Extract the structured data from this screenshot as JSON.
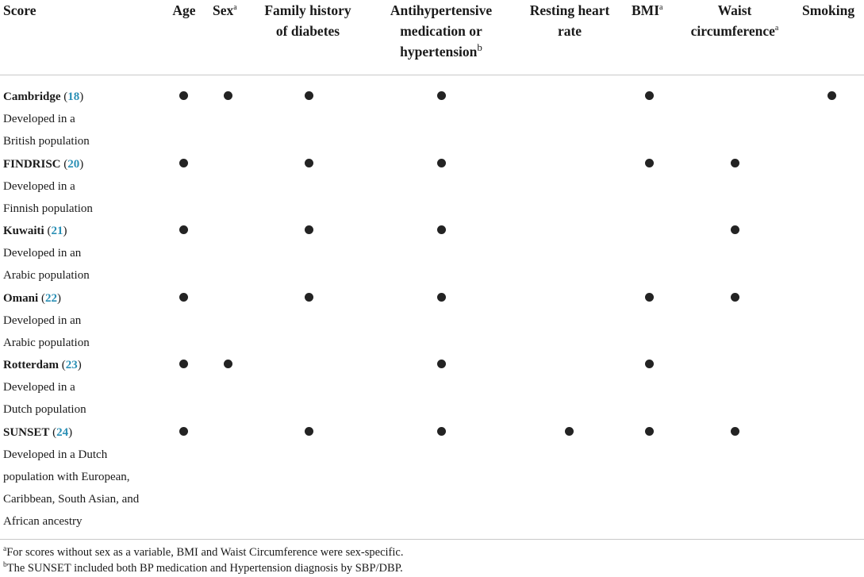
{
  "header": {
    "score": "Score",
    "age": "Age",
    "sex": "Sex",
    "sex_mark": "a",
    "family_line1": "Family history",
    "family_line2": "of diabetes",
    "antihyp_line1": "Antihypertensive",
    "antihyp_line2": "medication or",
    "antihyp_line3": "hypertension",
    "antihyp_mark": "b",
    "heart_line1": "Resting heart",
    "heart_line2": "rate",
    "bmi": "BMI",
    "bmi_mark": "a",
    "waist_line1": "Waist",
    "waist_line2": "circumference",
    "waist_mark": "a",
    "smoking": "Smoking"
  },
  "columns": [
    "age",
    "sex",
    "family",
    "antihyp",
    "heart",
    "bmi",
    "waist",
    "smoking"
  ],
  "rows": [
    {
      "name": "Cambridge",
      "ref": "18",
      "desc": [
        "Developed in a",
        "British population"
      ],
      "flags": {
        "age": true,
        "sex": true,
        "family": true,
        "antihyp": true,
        "heart": false,
        "bmi": true,
        "waist": false,
        "smoking": true
      }
    },
    {
      "name": "FINDRISC",
      "ref": "20",
      "desc": [
        "Developed in a",
        "Finnish population"
      ],
      "flags": {
        "age": true,
        "sex": false,
        "family": true,
        "antihyp": true,
        "heart": false,
        "bmi": true,
        "waist": true,
        "smoking": false
      }
    },
    {
      "name": "Kuwaiti",
      "ref": "21",
      "desc": [
        "Developed in an",
        "Arabic population"
      ],
      "flags": {
        "age": true,
        "sex": false,
        "family": true,
        "antihyp": true,
        "heart": false,
        "bmi": false,
        "waist": true,
        "smoking": false
      }
    },
    {
      "name": "Omani",
      "ref": "22",
      "desc": [
        "Developed in an",
        "Arabic population"
      ],
      "flags": {
        "age": true,
        "sex": false,
        "family": true,
        "antihyp": true,
        "heart": false,
        "bmi": true,
        "waist": true,
        "smoking": false
      }
    },
    {
      "name": "Rotterdam",
      "ref": "23",
      "desc": [
        "Developed in a",
        "Dutch population"
      ],
      "flags": {
        "age": true,
        "sex": true,
        "family": false,
        "antihyp": true,
        "heart": false,
        "bmi": true,
        "waist": false,
        "smoking": false
      }
    },
    {
      "name": "SUNSET",
      "ref": "24",
      "desc": [
        "Developed in a Dutch",
        "population with European,",
        "Caribbean, South Asian, and",
        "African ancestry"
      ],
      "flags": {
        "age": true,
        "sex": false,
        "family": true,
        "antihyp": true,
        "heart": true,
        "bmi": true,
        "waist": true,
        "smoking": false
      }
    }
  ],
  "footnotes": [
    {
      "mark": "a",
      "text": "For scores without sex as a variable, BMI and Waist Circumference were sex-specific."
    },
    {
      "mark": "b",
      "text": "The SUNSET included both BP medication and Hypertension diagnosis by SBP/DBP."
    }
  ],
  "colors": {
    "reference": "#2a8fb5",
    "dot": "#232323",
    "rule": "#c8c8c8"
  }
}
